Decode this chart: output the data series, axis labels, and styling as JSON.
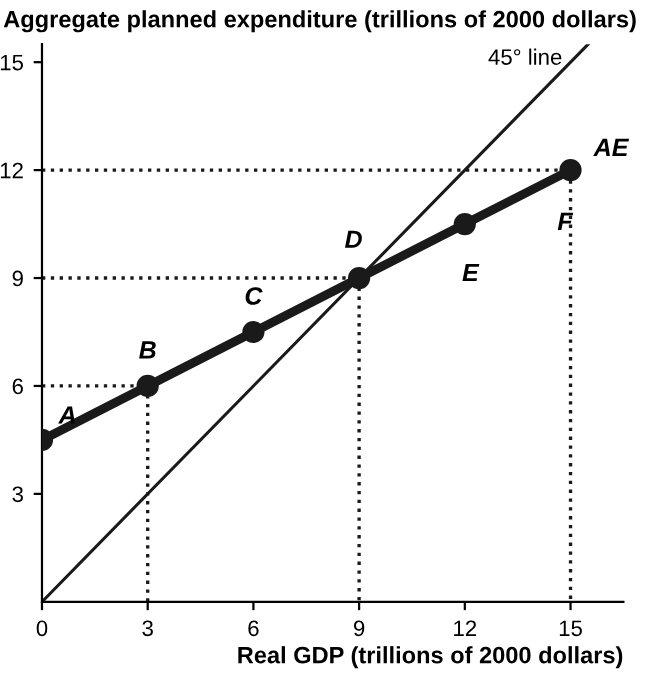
{
  "chart_data": {
    "type": "line",
    "xlabel": "Real GDP (trillions of 2000 dollars)",
    "ylabel": "Aggregate planned expenditure (trillions of 2000 dollars)",
    "x": [
      0,
      3,
      6,
      9,
      12,
      15
    ],
    "series": [
      {
        "color": "#1a1a1a",
        "values": [
          4.5,
          6,
          7.5,
          9,
          10.5,
          12
        ],
        "marker": "circle",
        "line_style": "solid"
      },
      {
        "color": "#1a1a1a",
        "x": [
          0,
          15.5
        ],
        "values": [
          0,
          15.5
        ],
        "marker": "none",
        "line_style": "solid"
      },
      {
        "color": "#1a1a1a",
        "x": [
          0,
          3,
          3
        ],
        "values": [
          6,
          6,
          0
        ],
        "marker": "none",
        "line_style": "dotted"
      },
      {
        "color": "#1a1a1a",
        "x": [
          0,
          9,
          9
        ],
        "values": [
          9,
          9,
          0
        ],
        "marker": "none",
        "line_style": "dotted"
      },
      {
        "color": "#1a1a1a",
        "x": [
          0,
          15,
          15
        ],
        "values": [
          12,
          12,
          0
        ],
        "marker": "none",
        "line_style": "dotted"
      }
    ],
    "annotations": [
      {
        "text": "A",
        "x": 0,
        "y": 4.5
      },
      {
        "text": "B",
        "x": 3,
        "y": 6
      },
      {
        "text": "C",
        "x": 6,
        "y": 7.5
      },
      {
        "text": "D",
        "x": 9,
        "y": 9
      },
      {
        "text": "E",
        "x": 12,
        "y": 10.5
      },
      {
        "text": "F",
        "x": 15,
        "y": 12
      },
      {
        "text": "AE",
        "x": 15.5,
        "y": 12.25
      },
      "45° line"
    ],
    "xlim": [
      0,
      16.5
    ],
    "ylim": [
      0,
      15.5
    ],
    "xticks": [
      0,
      3,
      6,
      9,
      12,
      15
    ],
    "yticks": [
      3,
      6,
      9,
      12,
      15
    ],
    "grid": false,
    "legend": false
  }
}
